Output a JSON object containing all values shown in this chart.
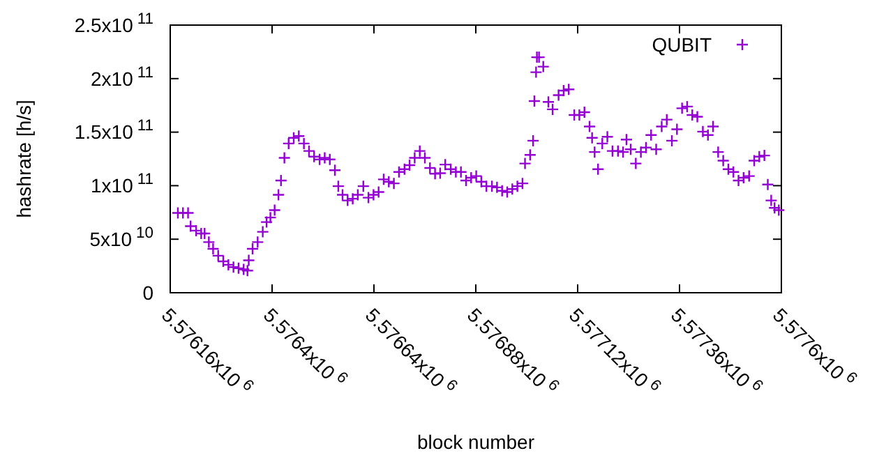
{
  "chart_data": {
    "type": "scatter",
    "xlabel": "block number",
    "ylabel": "hashrate [h/s]",
    "marker": "cross",
    "legend": "top right",
    "grid": false,
    "xlim": [
      5576160,
      5577600
    ],
    "ylim": [
      0,
      250000000000
    ],
    "xticks": [
      {
        "value": 5576160,
        "label": "5.57616x10$^{6}$"
      },
      {
        "value": 5576400,
        "label": "5.5764x10$^{6}$"
      },
      {
        "value": 5576640,
        "label": "5.57664x10$^{6}$"
      },
      {
        "value": 5576880,
        "label": "5.57688x10$^{6}$"
      },
      {
        "value": 5577120,
        "label": "5.57712x10$^{6}$"
      },
      {
        "value": 5577360,
        "label": "5.57736x10$^{6}$"
      },
      {
        "value": 5577600,
        "label": "5.5776x10$^{6}$"
      }
    ],
    "yticks": [
      0,
      {
        "value": 50000000000,
        "label": "5x10$^{10}$"
      },
      {
        "value": 100000000000,
        "label": "1x10$^{11}$"
      },
      {
        "value": 150000000000,
        "label": "1.5x10$^{11}$"
      },
      {
        "value": 200000000000,
        "label": "2x10$^{11}$"
      },
      {
        "value": 250000000000,
        "label": "2.5x10$^{11}$"
      }
    ],
    "series": [
      {
        "name": "QUBIT",
        "color": "#9400d3",
        "x": [
          5576178,
          5576190,
          5576202,
          5576208,
          5576221,
          5576233,
          5576241,
          5576251,
          5576261,
          5576273,
          5576285,
          5576297,
          5576309,
          5576321,
          5576333,
          5576342,
          5576345,
          5576354,
          5576366,
          5576378,
          5576387,
          5576396,
          5576406,
          5576415,
          5576421,
          5576429,
          5576439,
          5576451,
          5576463,
          5576475,
          5576487,
          5576499,
          5576512,
          5576524,
          5576536,
          5576548,
          5576556,
          5576566,
          5576578,
          5576590,
          5576602,
          5576615,
          5576627,
          5576639,
          5576651,
          5576663,
          5576675,
          5576687,
          5576699,
          5576712,
          5576724,
          5576736,
          5576748,
          5576760,
          5576772,
          5576784,
          5576796,
          5576808,
          5576821,
          5576833,
          5576845,
          5576857,
          5576869,
          5576881,
          5576893,
          5576905,
          5576918,
          5576930,
          5576942,
          5576954,
          5576966,
          5576978,
          5576990,
          5576996,
          5577008,
          5577015,
          5577018,
          5577022,
          5577024,
          5577029,
          5577039,
          5577051,
          5577061,
          5577075,
          5577087,
          5577099,
          5577112,
          5577124,
          5577136,
          5577148,
          5577154,
          5577160,
          5577168,
          5577178,
          5577190,
          5577202,
          5577215,
          5577227,
          5577235,
          5577245,
          5577257,
          5577269,
          5577281,
          5577293,
          5577305,
          5577318,
          5577330,
          5577342,
          5577354,
          5577366,
          5577378,
          5577390,
          5577402,
          5577415,
          5577427,
          5577439,
          5577451,
          5577463,
          5577475,
          5577487,
          5577499,
          5577511,
          5577524,
          5577536,
          5577548,
          5577560,
          5577568,
          5577576,
          5577584,
          5577594
        ],
        "values": [
          74500000000,
          74500000000,
          74500000000,
          62200000000,
          58000000000,
          55300000000,
          55300000000,
          47300000000,
          41000000000,
          34600000000,
          29300000000,
          26100000000,
          23900000000,
          22900000000,
          21800000000,
          20700000000,
          30300000000,
          41000000000,
          47300000000,
          56900000000,
          66000000000,
          70200000000,
          77100000000,
          91500000000,
          104800000000,
          126000000000,
          139400000000,
          144700000000,
          146300000000,
          139400000000,
          132400000000,
          127100000000,
          124500000000,
          126000000000,
          124500000000,
          114400000000,
          99500000000,
          91500000000,
          86200000000,
          87800000000,
          91500000000,
          99500000000,
          88800000000,
          91500000000,
          94100000000,
          105900000000,
          103700000000,
          102100000000,
          112800000000,
          115400000000,
          119100000000,
          126000000000,
          132400000000,
          126000000000,
          116500000000,
          111200000000,
          111700000000,
          119700000000,
          115400000000,
          112800000000,
          112800000000,
          104800000000,
          107400000000,
          109000000000,
          103700000000,
          99500000000,
          99500000000,
          98400000000,
          95200000000,
          94100000000,
          96800000000,
          99500000000,
          102100000000,
          120700000000,
          128700000000,
          142000000000,
          179000000000,
          206000000000,
          220000000000,
          220000000000,
          211200000000,
          178200000000,
          171300000000,
          184600000000,
          188800000000,
          189900000000,
          166000000000,
          166000000000,
          168600000000,
          155300000000,
          144700000000,
          131400000000,
          115400000000,
          139400000000,
          145700000000,
          132400000000,
          132400000000,
          131400000000,
          143100000000,
          134000000000,
          120700000000,
          131400000000,
          135600000000,
          147300000000,
          134000000000,
          155300000000,
          161700000000,
          142000000000,
          152700000000,
          172300000000,
          173900000000,
          166000000000,
          164400000000,
          150500000000,
          147300000000,
          155300000000,
          131400000000,
          123400000000,
          115400000000,
          112800000000,
          104800000000,
          107400000000,
          109000000000,
          123400000000,
          127100000000,
          128200000000,
          101100000000,
          86200000000,
          79300000000,
          77100000000
        ]
      }
    ]
  }
}
